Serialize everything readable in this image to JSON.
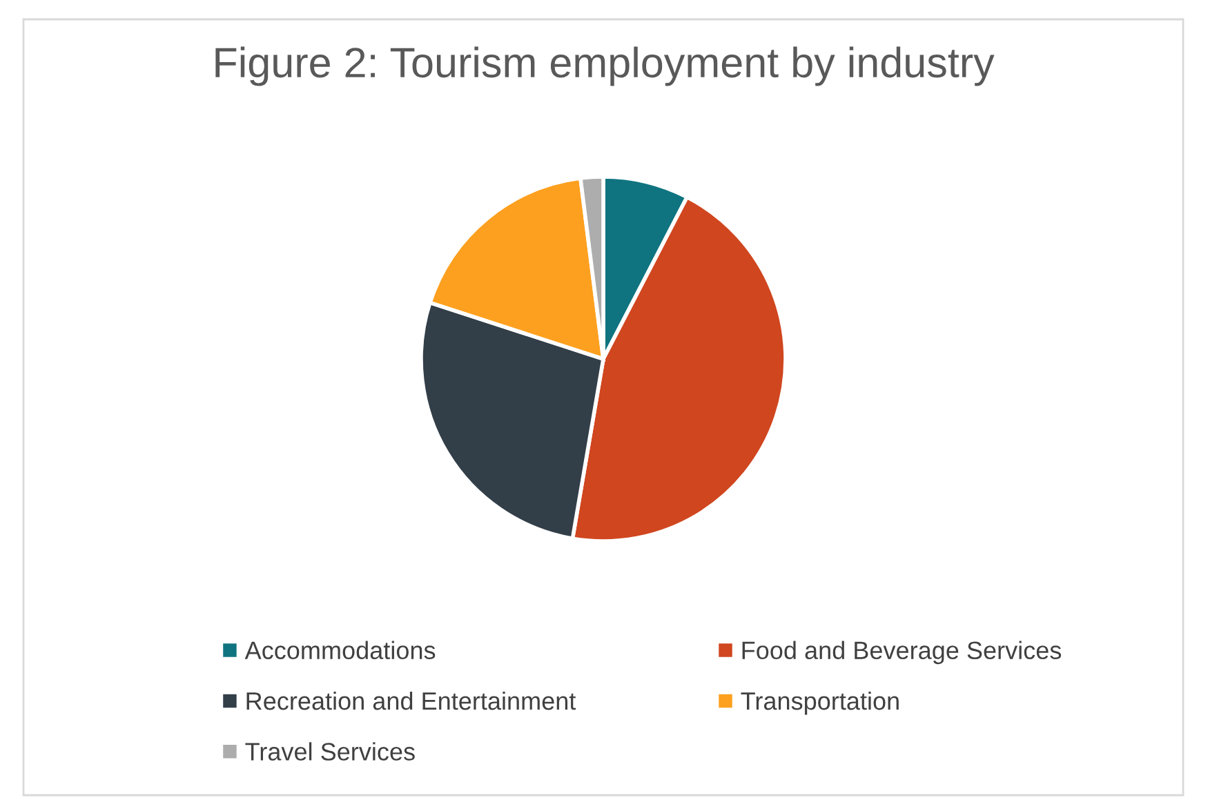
{
  "chart_data": {
    "type": "pie",
    "title": "Figure 2: Tourism employment by industry",
    "categories": [
      "Accommodations",
      "Food and Beverage Services",
      "Recreation and Entertainment",
      "Transportation",
      "Travel Services"
    ],
    "values": [
      7.6,
      45.1,
      27.3,
      18.0,
      2.0
    ],
    "colors": [
      "#0f7480",
      "#d0461f",
      "#323e48",
      "#fda01f",
      "#adadad"
    ],
    "legend": "bottom"
  }
}
